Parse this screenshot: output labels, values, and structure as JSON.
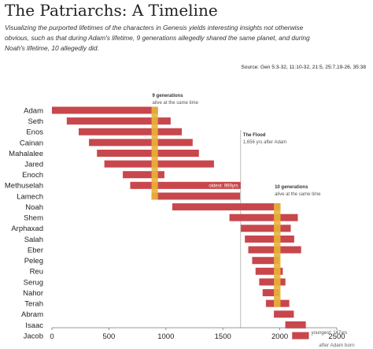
{
  "chart_data": {
    "type": "bar",
    "subtype": "floating-timeline",
    "title": "The Patriarchs: A Timeline",
    "subtitle_lines": [
      "Visualizing the purported lifetimes of the characters in Genesis yields interesting insights not otherwise",
      "obvious, such as that during Adam's lifetime, 9 generations allegedly shared the same planet, and during",
      "Noah's lifetime, 10 allegedly did."
    ],
    "source": "Source: Gen 5:3-32, 11:10-32, 21:5, 25:7,19-26, 35:38",
    "xlim": [
      0,
      2500
    ],
    "x_ticks": [
      0,
      500,
      1000,
      1500,
      2000,
      2500
    ],
    "x_unit_label": "after Adam born",
    "colors": {
      "bar": "#c8474c",
      "highlight": "#e8b23a",
      "axis": "#777777",
      "marker": "#aaaaaa"
    },
    "series": [
      {
        "name": "Adam",
        "start": 0,
        "end": 930
      },
      {
        "name": "Seth",
        "start": 130,
        "end": 1042
      },
      {
        "name": "Enos",
        "start": 235,
        "end": 1140
      },
      {
        "name": "Cainan",
        "start": 325,
        "end": 1235
      },
      {
        "name": "Mahalalee",
        "start": 395,
        "end": 1290
      },
      {
        "name": "Jared",
        "start": 460,
        "end": 1422
      },
      {
        "name": "Enoch",
        "start": 622,
        "end": 987
      },
      {
        "name": "Methuselah",
        "start": 687,
        "end": 1656
      },
      {
        "name": "Lamech",
        "start": 874,
        "end": 1651
      },
      {
        "name": "Noah",
        "start": 1056,
        "end": 2006
      },
      {
        "name": "Shem",
        "start": 1558,
        "end": 2158
      },
      {
        "name": "Arphaxad",
        "start": 1658,
        "end": 2096
      },
      {
        "name": "Salah",
        "start": 1693,
        "end": 2126
      },
      {
        "name": "Eber",
        "start": 1723,
        "end": 2187
      },
      {
        "name": "Peleg",
        "start": 1757,
        "end": 1996
      },
      {
        "name": "Reu",
        "start": 1787,
        "end": 2026
      },
      {
        "name": "Serug",
        "start": 1819,
        "end": 2049
      },
      {
        "name": "Nahor",
        "start": 1849,
        "end": 1997
      },
      {
        "name": "Terah",
        "start": 1878,
        "end": 2083
      },
      {
        "name": "Abram",
        "start": 1948,
        "end": 2123
      },
      {
        "name": "Isaac",
        "start": 2048,
        "end": 2228
      },
      {
        "name": "Jacob",
        "start": 2108,
        "end": 2255
      }
    ],
    "highlight_bands": [
      {
        "from": 874,
        "to": 930,
        "first_row": 0,
        "last_row": 8
      },
      {
        "from": 1948,
        "to": 2006,
        "first_row": 9,
        "last_row": 18
      }
    ],
    "flood_year": 1656,
    "annotations": [
      {
        "id": "gen9",
        "bold": "9 generations",
        "text": "alive at the same time"
      },
      {
        "id": "flood",
        "bold": "The Flood",
        "text": "1,656 yrs after Adam"
      },
      {
        "id": "gen10",
        "bold": "10 generations",
        "text": "alive at the same time"
      },
      {
        "id": "oldest",
        "text": "oldest: 969yrs",
        "row": 7
      },
      {
        "id": "youngest",
        "text": "youngest: 147yrs",
        "row": 21
      }
    ]
  }
}
